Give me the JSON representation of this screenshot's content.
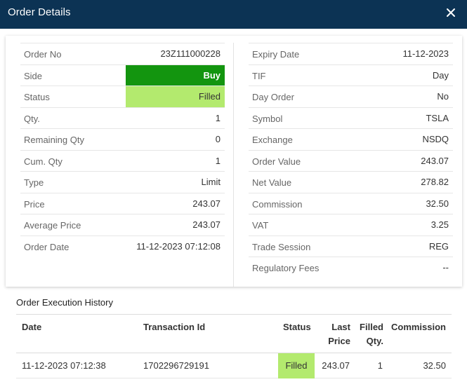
{
  "dialog": {
    "title": "Order Details",
    "close_icon": "close-icon"
  },
  "left_details": [
    {
      "label": "Order No",
      "value": "23Z111000228"
    },
    {
      "label": "Side",
      "value": "Buy",
      "highlight": "buy"
    },
    {
      "label": "Status",
      "value": "Filled",
      "highlight": "filled"
    },
    {
      "label": "Qty.",
      "value": "1"
    },
    {
      "label": "Remaining Qty",
      "value": "0"
    },
    {
      "label": "Cum. Qty",
      "value": "1"
    },
    {
      "label": "Type",
      "value": "Limit"
    },
    {
      "label": "Price",
      "value": "243.07"
    },
    {
      "label": "Average Price",
      "value": "243.07"
    },
    {
      "label": "Order Date",
      "value": "11-12-2023 07:12:08"
    }
  ],
  "right_details": [
    {
      "label": "Expiry Date",
      "value": "11-12-2023"
    },
    {
      "label": "TIF",
      "value": "Day"
    },
    {
      "label": "Day Order",
      "value": "No"
    },
    {
      "label": "Symbol",
      "value": "TSLA"
    },
    {
      "label": "Exchange",
      "value": "NSDQ"
    },
    {
      "label": "Order Value",
      "value": "243.07"
    },
    {
      "label": "Net Value",
      "value": "278.82"
    },
    {
      "label": "Commission",
      "value": "32.50"
    },
    {
      "label": "VAT",
      "value": "3.25"
    },
    {
      "label": "Trade Session",
      "value": "REG"
    },
    {
      "label": "Regulatory Fees",
      "value": "--"
    }
  ],
  "history": {
    "title": "Order Execution History",
    "columns": {
      "date": "Date",
      "transaction_id": "Transaction Id",
      "status": "Status",
      "last_price_1": "Last",
      "last_price_2": "Price",
      "filled_qty_1": "Filled",
      "filled_qty_2": "Qty.",
      "commission": "Commission"
    },
    "rows": [
      {
        "date": "11-12-2023 07:12:38",
        "transaction_id": "1702296729191",
        "status": "Filled",
        "last_price": "243.07",
        "filled_qty": "1",
        "commission": "32.50"
      }
    ]
  },
  "colors": {
    "header_bg": "#0c3354",
    "buy_bg": "#13950f",
    "filled_bg": "#b3ea6e"
  }
}
